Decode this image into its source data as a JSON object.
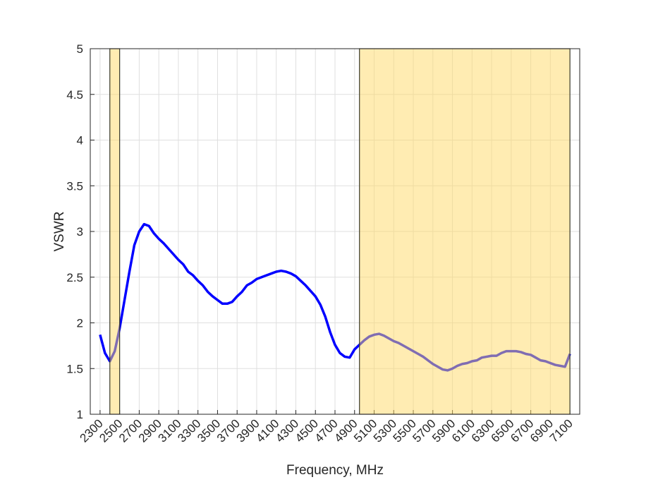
{
  "chart_data": {
    "type": "line",
    "xlabel": "Frequency, MHz",
    "ylabel": "VSWR",
    "x": [
      2300,
      2350,
      2400,
      2450,
      2500,
      2550,
      2600,
      2650,
      2700,
      2750,
      2800,
      2850,
      2900,
      2950,
      3000,
      3050,
      3100,
      3150,
      3200,
      3250,
      3300,
      3350,
      3400,
      3450,
      3500,
      3550,
      3600,
      3650,
      3700,
      3750,
      3800,
      3850,
      3900,
      3950,
      4000,
      4050,
      4100,
      4150,
      4200,
      4250,
      4300,
      4350,
      4400,
      4450,
      4500,
      4550,
      4600,
      4650,
      4700,
      4750,
      4800,
      4850,
      4900,
      4950,
      5000,
      5050,
      5100,
      5150,
      5200,
      5250,
      5300,
      5350,
      5400,
      5450,
      5500,
      5550,
      5600,
      5650,
      5700,
      5750,
      5800,
      5850,
      5900,
      5950,
      6000,
      6050,
      6100,
      6150,
      6200,
      6250,
      6300,
      6350,
      6400,
      6450,
      6500,
      6550,
      6600,
      6650,
      6700,
      6750,
      6800,
      6850,
      6900,
      6950,
      7000,
      7050,
      7100
    ],
    "series": [
      {
        "color": "#0000ff",
        "values": [
          1.87,
          1.67,
          1.58,
          1.69,
          1.94,
          2.25,
          2.56,
          2.85,
          3.0,
          3.08,
          3.06,
          2.98,
          2.92,
          2.87,
          2.81,
          2.75,
          2.69,
          2.64,
          2.56,
          2.52,
          2.46,
          2.41,
          2.34,
          2.29,
          2.25,
          2.21,
          2.21,
          2.23,
          2.29,
          2.34,
          2.41,
          2.44,
          2.48,
          2.5,
          2.52,
          2.54,
          2.56,
          2.57,
          2.56,
          2.54,
          2.51,
          2.46,
          2.41,
          2.35,
          2.29,
          2.2,
          2.07,
          1.9,
          1.76,
          1.67,
          1.63,
          1.62,
          1.71,
          1.76,
          1.81,
          1.85,
          1.87,
          1.88,
          1.86,
          1.83,
          1.8,
          1.78,
          1.75,
          1.72,
          1.69,
          1.66,
          1.63,
          1.59,
          1.55,
          1.52,
          1.49,
          1.48,
          1.5,
          1.53,
          1.55,
          1.56,
          1.58,
          1.59,
          1.62,
          1.63,
          1.64,
          1.64,
          1.67,
          1.69,
          1.69,
          1.69,
          1.68,
          1.66,
          1.65,
          1.62,
          1.59,
          1.58,
          1.56,
          1.54,
          1.53,
          1.52,
          1.66
        ]
      }
    ],
    "shaded_regions": [
      [
        2400,
        2500
      ],
      [
        4950,
        7100
      ]
    ],
    "shade_color": "#ffd966",
    "xlim": [
      2200,
      7200
    ],
    "ylim": [
      1,
      5
    ],
    "xticks": [
      2300,
      2500,
      2700,
      2900,
      3100,
      3300,
      3500,
      3700,
      3900,
      4100,
      4300,
      4500,
      4700,
      4900,
      5100,
      5300,
      5500,
      5700,
      5900,
      6100,
      6300,
      6500,
      6700,
      6900,
      7100
    ],
    "yticks": [
      1,
      1.5,
      2,
      2.5,
      3,
      3.5,
      4,
      4.5,
      5
    ],
    "grid": true
  }
}
